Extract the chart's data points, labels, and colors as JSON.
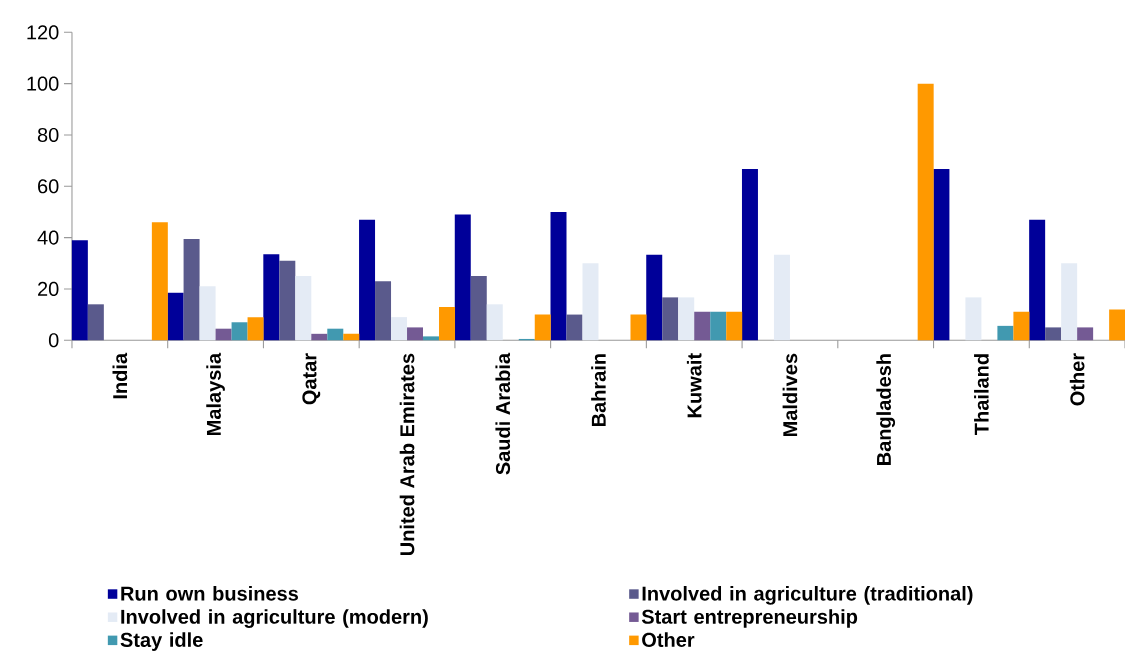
{
  "chart_data": {
    "type": "bar",
    "categories": [
      "India",
      "Malaysia",
      "Qatar",
      "United Arab Emirates",
      "Saudi Arabia",
      "Bahrain",
      "Kuwait",
      "Maldives",
      "Bangladesh",
      "Thailand",
      "Other"
    ],
    "series": [
      {
        "name": "Run own business",
        "color": "#000099",
        "values": [
          39,
          18.5,
          33.5,
          47,
          49,
          50,
          33.3,
          66.7,
          0,
          66.7,
          47
        ]
      },
      {
        "name": "Involved in agriculture (traditional)",
        "color": "#5a5a8c",
        "values": [
          14,
          39.5,
          31,
          23,
          25,
          10,
          16.7,
          0,
          0,
          0,
          5
        ]
      },
      {
        "name": "Involved in agriculture (modern)",
        "color": "#e4ebf5",
        "values": [
          0,
          21,
          25,
          9,
          14,
          30,
          16.7,
          33.3,
          0,
          16.7,
          30
        ]
      },
      {
        "name": "Start entrepreneurship",
        "color": "#745a94",
        "values": [
          0,
          4.5,
          2.5,
          5,
          0,
          0,
          11.1,
          0,
          0,
          0,
          5
        ]
      },
      {
        "name": "Stay idle",
        "color": "#4199b0",
        "values": [
          0,
          7,
          4.5,
          1.5,
          0.5,
          0,
          11.1,
          0,
          0,
          5.6,
          0
        ]
      },
      {
        "name": "Other",
        "color": "#ff9900",
        "values": [
          46,
          9,
          2.5,
          13,
          10,
          10,
          11.1,
          0,
          100,
          11.1,
          12
        ]
      }
    ],
    "ylim": [
      0,
      120
    ],
    "yticks": [
      0,
      20,
      40,
      60,
      80,
      100,
      120
    ],
    "grid": false,
    "legend": "bottom"
  }
}
